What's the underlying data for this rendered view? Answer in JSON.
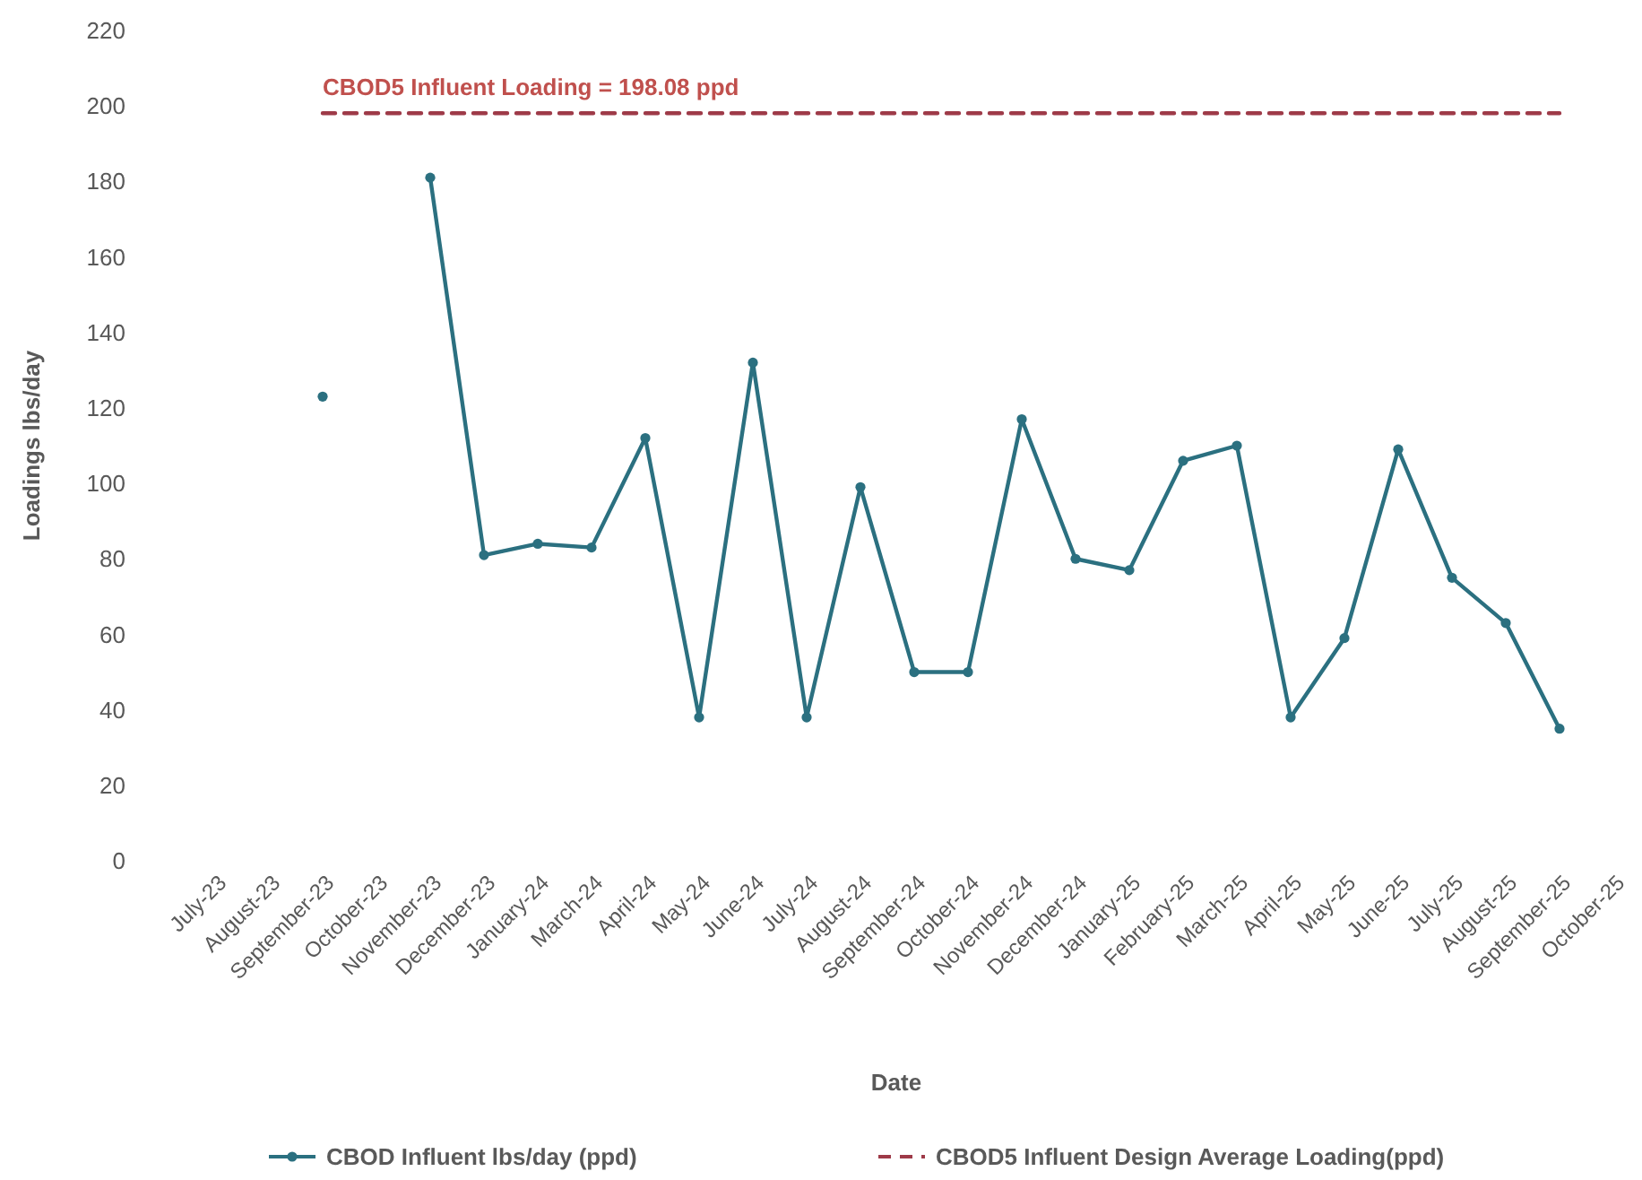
{
  "chart_data": {
    "type": "line",
    "xlabel": "Date",
    "ylabel": "Loadings lbs/day",
    "categories": [
      "July-23",
      "August-23",
      "September-23",
      "October-23",
      "November-23",
      "December-23",
      "January-24",
      "March-24",
      "April-24",
      "May-24",
      "June-24",
      "July-24",
      "August-24",
      "September-24",
      "October-24",
      "November-24",
      "December-24",
      "January-25",
      "February-25",
      "March-25",
      "April-25",
      "May-25",
      "June-25",
      "July-25",
      "August-25",
      "September-25",
      "October-25"
    ],
    "series": [
      {
        "name": "CBOD Influent lbs/day (ppd)",
        "color": "#2b7080",
        "marker": "circle",
        "line_style": "solid",
        "values": [
          null,
          null,
          123,
          null,
          181,
          81,
          84,
          83,
          112,
          38,
          132,
          38,
          99,
          50,
          50,
          117,
          80,
          77,
          106,
          110,
          38,
          59,
          109,
          75,
          63,
          35,
          null
        ]
      },
      {
        "name": "CBOD5 Influent Design Average Loading(ppd)",
        "color": "#9e3a48",
        "marker": "none",
        "line_style": "dashed",
        "values": [
          null,
          null,
          198.08,
          198.08,
          198.08,
          198.08,
          198.08,
          198.08,
          198.08,
          198.08,
          198.08,
          198.08,
          198.08,
          198.08,
          198.08,
          198.08,
          198.08,
          198.08,
          198.08,
          198.08,
          198.08,
          198.08,
          198.08,
          198.08,
          198.08,
          198.08,
          null
        ]
      }
    ],
    "annotations": [
      {
        "text": "CBOD5 Influent Loading = 198.08 ppd",
        "x": "September-23",
        "y": 198.08
      }
    ],
    "ylim": [
      0,
      220
    ],
    "yticks": [
      0,
      20,
      40,
      60,
      80,
      100,
      120,
      140,
      160,
      180,
      200,
      220
    ],
    "grid": false,
    "legend": "bottom"
  }
}
